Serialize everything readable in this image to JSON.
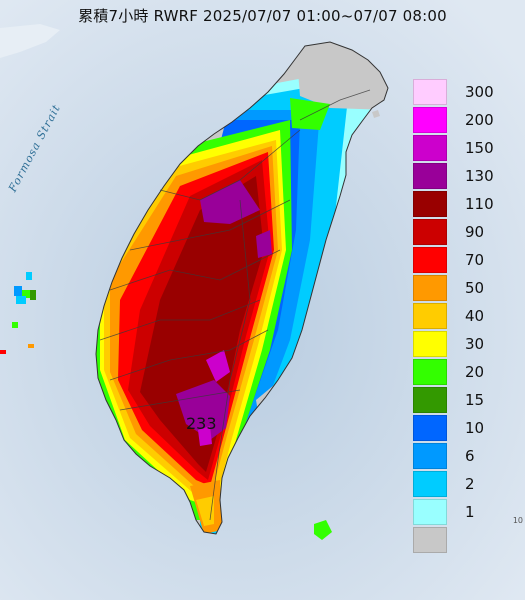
{
  "title": "累積7小時 RWRF 2025/07/07 01:00~07/07 08:00",
  "sea_label": "Formosa Strait",
  "max_value_label": "233",
  "corner_mark": "10",
  "legend": {
    "items": [
      {
        "label": "300",
        "color": "#ffccff"
      },
      {
        "label": "200",
        "color": "#ff00ff"
      },
      {
        "label": "150",
        "color": "#cc00cc"
      },
      {
        "label": "130",
        "color": "#990099"
      },
      {
        "label": "110",
        "color": "#990000"
      },
      {
        "label": "90",
        "color": "#cc0000"
      },
      {
        "label": "70",
        "color": "#ff0000"
      },
      {
        "label": "50",
        "color": "#ff9900"
      },
      {
        "label": "40",
        "color": "#ffcc00"
      },
      {
        "label": "30",
        "color": "#ffff00"
      },
      {
        "label": "20",
        "color": "#33ff00"
      },
      {
        "label": "15",
        "color": "#339900"
      },
      {
        "label": "10",
        "color": "#0066ff"
      },
      {
        "label": "6",
        "color": "#0099ff"
      },
      {
        "label": "2",
        "color": "#00ccff"
      },
      {
        "label": "1",
        "color": "#99ffff"
      },
      {
        "label": "",
        "color": "#c8c8c8"
      }
    ]
  },
  "colors": {
    "sea_far": "#dbe6f2",
    "sea_near": "#b7cbe0",
    "land": "#c8c8c8"
  }
}
